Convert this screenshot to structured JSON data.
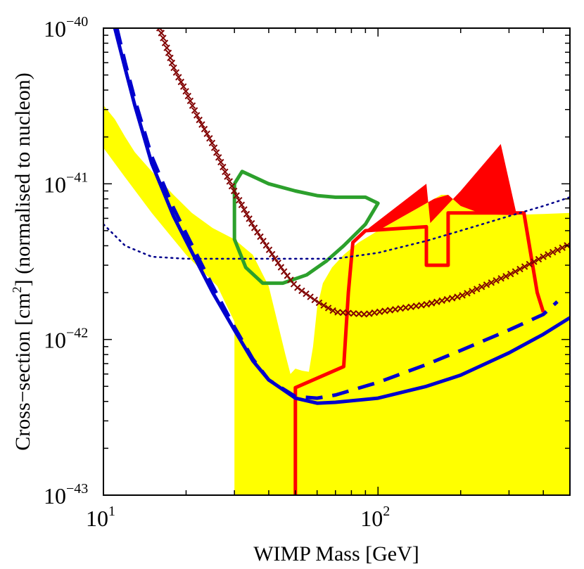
{
  "chart_data": {
    "type": "line",
    "xscale": "log",
    "yscale": "log",
    "xlim": [
      10,
      500
    ],
    "ylim": [
      1e-43,
      1e-40
    ],
    "xlabel": "WIMP Mass [GeV]",
    "ylabel": {
      "prefix": "Cross−section [cm",
      "sup": "2",
      "suffix": "] (normalised to nucleon)"
    },
    "xticks": [
      {
        "value": 10,
        "base": "10",
        "exp": "1"
      },
      {
        "value": 100,
        "base": "10",
        "exp": "2"
      }
    ],
    "yticks": [
      {
        "value": 1e-40,
        "base": "10",
        "exp": "−40"
      },
      {
        "value": 1e-41,
        "base": "10",
        "exp": "−41"
      },
      {
        "value": 1e-42,
        "base": "10",
        "exp": "−42"
      },
      {
        "value": 1e-43,
        "base": "10",
        "exp": "−43"
      }
    ],
    "series": [
      {
        "name": "yellow-region",
        "kind": "fill",
        "color": "#ffff00",
        "points": [
          [
            10,
            3.2e-41
          ],
          [
            11,
            2.6e-41
          ],
          [
            12,
            2e-41
          ],
          [
            13,
            1.6e-41
          ],
          [
            15,
            1.2e-41
          ],
          [
            18,
            8.5e-42
          ],
          [
            21,
            6.5e-42
          ],
          [
            25,
            5.2e-42
          ],
          [
            30,
            4.4e-42
          ],
          [
            35,
            3.5e-42
          ],
          [
            40,
            2.2e-42
          ],
          [
            43,
            1.3e-42
          ],
          [
            46,
            8e-43
          ],
          [
            48,
            6e-43
          ],
          [
            50,
            6.5e-43
          ],
          [
            53,
            6.3e-43
          ],
          [
            56,
            6.2e-43
          ],
          [
            58,
            9e-43
          ],
          [
            60,
            1.6e-42
          ],
          [
            63,
            2.3e-42
          ],
          [
            68,
            2.9e-42
          ],
          [
            75,
            3.5e-42
          ],
          [
            85,
            4.2e-42
          ],
          [
            100,
            5e-42
          ],
          [
            120,
            6e-42
          ],
          [
            140,
            7e-42
          ],
          [
            150,
            7.5e-42
          ],
          [
            160,
            8e-42
          ],
          [
            170,
            8.5e-42
          ],
          [
            180,
            8.5e-42
          ],
          [
            200,
            7.2e-42
          ],
          [
            250,
            6.4e-42
          ],
          [
            300,
            6.3e-42
          ],
          [
            400,
            6.4e-42
          ],
          [
            500,
            6.5e-42
          ],
          [
            500,
            1e-43
          ],
          [
            30,
            1e-43
          ],
          [
            30,
            1.3e-42
          ],
          [
            26,
            2.2e-42
          ],
          [
            20,
            3.5e-42
          ],
          [
            15,
            6.5e-42
          ],
          [
            12,
            1.1e-41
          ],
          [
            10,
            1.7e-41
          ]
        ]
      },
      {
        "name": "red-filled-triangles",
        "kind": "fill",
        "color": "#ff0000",
        "points": [
          [
            90,
            5e-42
          ],
          [
            150,
            1e-41
          ],
          [
            155,
            5.6e-42
          ],
          [
            200,
            9e-42
          ],
          [
            280,
            1.8e-41
          ],
          [
            320,
            6.3e-42
          ],
          [
            300,
            6.3e-42
          ],
          [
            240,
            6.4e-42
          ],
          [
            200,
            7.2e-42
          ],
          [
            180,
            8.5e-42
          ],
          [
            160,
            8e-42
          ],
          [
            150,
            7.5e-42
          ],
          [
            140,
            7e-42
          ],
          [
            120,
            6e-42
          ],
          [
            100,
            5e-42
          ]
        ]
      },
      {
        "name": "green-contour",
        "kind": "line",
        "color": "#2ca02c",
        "points": [
          [
            30,
            1e-41
          ],
          [
            32,
            1.2e-41
          ],
          [
            40,
            1e-41
          ],
          [
            50,
            9e-42
          ],
          [
            60,
            8.4e-42
          ],
          [
            70,
            8.2e-42
          ],
          [
            90,
            8.2e-42
          ],
          [
            100,
            7.5e-42
          ],
          [
            90,
            5.5e-42
          ],
          [
            75,
            4e-42
          ],
          [
            65,
            3.2e-42
          ],
          [
            55,
            2.6e-42
          ],
          [
            45,
            2.3e-42
          ],
          [
            38,
            2.3e-42
          ],
          [
            33,
            2.9e-42
          ],
          [
            30,
            4.4e-42
          ],
          [
            30,
            1e-41
          ]
        ]
      },
      {
        "name": "red-line",
        "kind": "line",
        "color": "#ff0000",
        "points": [
          [
            50,
            1e-43
          ],
          [
            50,
            4.9e-43
          ],
          [
            65,
            6e-43
          ],
          [
            75,
            6.7e-43
          ],
          [
            78,
            2e-42
          ],
          [
            81,
            4.2e-42
          ],
          [
            90,
            5e-42
          ],
          [
            150,
            5.3e-42
          ],
          [
            150,
            3e-42
          ],
          [
            180,
            3e-42
          ],
          [
            180,
            6.5e-42
          ],
          [
            340,
            6.5e-42
          ],
          [
            380,
            2e-42
          ],
          [
            400,
            1.5e-42
          ]
        ]
      },
      {
        "name": "blue-dotted",
        "kind": "line",
        "color": "#00008b",
        "points": [
          [
            10,
            5.5e-42
          ],
          [
            12,
            4e-42
          ],
          [
            15,
            3.4e-42
          ],
          [
            20,
            3.3e-42
          ],
          [
            30,
            3.3e-42
          ],
          [
            50,
            3.3e-42
          ],
          [
            70,
            3.3e-42
          ],
          [
            100,
            3.6e-42
          ],
          [
            150,
            4.3e-42
          ],
          [
            200,
            5e-42
          ],
          [
            300,
            6.2e-42
          ],
          [
            400,
            7.2e-42
          ],
          [
            500,
            8.2e-42
          ]
        ]
      },
      {
        "name": "darkred-crosses",
        "kind": "marker",
        "color": "#800000",
        "points": [
          [
            16,
            1e-40
          ],
          [
            17,
            7.5e-41
          ],
          [
            18,
            5.6e-41
          ],
          [
            20,
            3.9e-41
          ],
          [
            22,
            2.7e-41
          ],
          [
            25,
            1.8e-41
          ],
          [
            28,
            1.15e-41
          ],
          [
            30,
            8.9e-42
          ],
          [
            35,
            5.4e-42
          ],
          [
            40,
            3.8e-42
          ],
          [
            45,
            2.8e-42
          ],
          [
            50,
            2.2e-42
          ],
          [
            60,
            1.75e-42
          ],
          [
            70,
            1.5e-42
          ],
          [
            90,
            1.45e-42
          ],
          [
            100,
            1.5e-42
          ],
          [
            150,
            1.68e-42
          ],
          [
            200,
            1.9e-42
          ],
          [
            300,
            2.6e-42
          ],
          [
            400,
            3.4e-42
          ],
          [
            500,
            4.1e-42
          ]
        ]
      },
      {
        "name": "blue-dashed",
        "kind": "line",
        "color": "#0000cd",
        "points": [
          [
            11.2,
            1e-40
          ],
          [
            12,
            6e-41
          ],
          [
            13,
            3.5e-41
          ],
          [
            15,
            1.5e-41
          ],
          [
            18,
            7e-42
          ],
          [
            20,
            4.8e-42
          ],
          [
            25,
            2.2e-42
          ],
          [
            30,
            1.2e-42
          ],
          [
            35,
            7.5e-43
          ],
          [
            40,
            5.5e-43
          ],
          [
            50,
            4.3e-43
          ],
          [
            60,
            4.2e-43
          ],
          [
            70,
            4.4e-43
          ],
          [
            100,
            5.3e-43
          ],
          [
            150,
            6.9e-43
          ],
          [
            200,
            8.5e-43
          ],
          [
            300,
            1.15e-42
          ],
          [
            400,
            1.45e-42
          ],
          [
            450,
            1.75e-42
          ]
        ]
      },
      {
        "name": "blue-solid",
        "kind": "line",
        "color": "#0000cd",
        "points": [
          [
            11,
            1e-40
          ],
          [
            12,
            5.5e-41
          ],
          [
            13,
            3.2e-41
          ],
          [
            15,
            1.35e-41
          ],
          [
            18,
            6.2e-42
          ],
          [
            20,
            4.3e-42
          ],
          [
            25,
            2e-42
          ],
          [
            30,
            1.15e-42
          ],
          [
            35,
            7.3e-43
          ],
          [
            40,
            5.5e-43
          ],
          [
            50,
            4.2e-43
          ],
          [
            60,
            3.9e-43
          ],
          [
            70,
            3.95e-43
          ],
          [
            100,
            4.2e-43
          ],
          [
            150,
            5e-43
          ],
          [
            200,
            5.9e-43
          ],
          [
            300,
            8.2e-43
          ],
          [
            400,
            1.08e-42
          ],
          [
            500,
            1.38e-42
          ]
        ]
      }
    ]
  }
}
